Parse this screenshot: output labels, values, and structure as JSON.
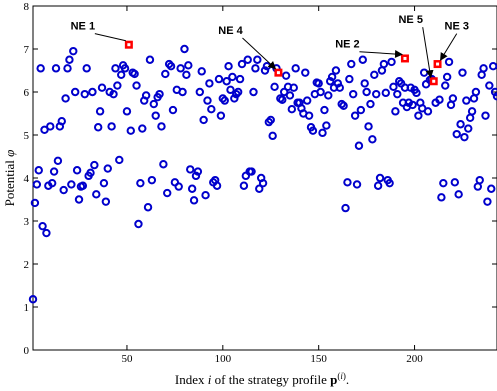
{
  "chart_data": {
    "type": "scatter",
    "xlabel": "Index i of the strategy profile p(i).",
    "ylabel": "Potential φ",
    "xlim": [
      1,
      243
    ],
    "ylim": [
      0,
      8
    ],
    "xticks": [
      50,
      100,
      150,
      200
    ],
    "yticks": [
      0,
      1,
      2,
      3,
      4,
      5,
      6,
      7,
      8
    ],
    "grid": false,
    "colors": {
      "points": "#0000cc",
      "ne": "#ff0000",
      "axes": "#000000"
    },
    "series": [
      {
        "points": [
          [
            1,
            1.18
          ],
          [
            2,
            3.42
          ],
          [
            3,
            3.85
          ],
          [
            4,
            4.18
          ],
          [
            5,
            6.55
          ],
          [
            6,
            2.88
          ],
          [
            7,
            5.12
          ],
          [
            8,
            2.72
          ],
          [
            9,
            3.82
          ],
          [
            10,
            5.2
          ],
          [
            11,
            3.88
          ],
          [
            12,
            4.15
          ],
          [
            13,
            6.55
          ],
          [
            14,
            4.4
          ],
          [
            15,
            5.2
          ],
          [
            16,
            5.32
          ],
          [
            17,
            3.72
          ],
          [
            18,
            5.85
          ],
          [
            19,
            6.55
          ],
          [
            20,
            6.75
          ],
          [
            21,
            3.85
          ],
          [
            22,
            6.95
          ],
          [
            23,
            6.0
          ],
          [
            24,
            4.18
          ],
          [
            25,
            3.5
          ],
          [
            26,
            3.8
          ],
          [
            27,
            3.82
          ],
          [
            28,
            5.95
          ],
          [
            29,
            6.55
          ],
          [
            30,
            4.05
          ],
          [
            31,
            4.12
          ],
          [
            32,
            6.0
          ],
          [
            33,
            4.3
          ],
          [
            34,
            3.62
          ],
          [
            35,
            5.18
          ],
          [
            36,
            5.55
          ],
          [
            37,
            6.1
          ],
          [
            38,
            3.88
          ],
          [
            39,
            3.45
          ],
          [
            40,
            4.22
          ],
          [
            41,
            6.0
          ],
          [
            42,
            5.2
          ],
          [
            43,
            5.95
          ],
          [
            44,
            6.55
          ],
          [
            45,
            6.15
          ],
          [
            46,
            4.42
          ],
          [
            47,
            6.4
          ],
          [
            48,
            6.62
          ],
          [
            49,
            6.55
          ],
          [
            50,
            5.55
          ],
          [
            52,
            5.1
          ],
          [
            53,
            6.45
          ],
          [
            54,
            6.42
          ],
          [
            55,
            6.15
          ],
          [
            56,
            2.93
          ],
          [
            57,
            3.88
          ],
          [
            58,
            5.15
          ],
          [
            59,
            5.8
          ],
          [
            60,
            5.92
          ],
          [
            61,
            3.32
          ],
          [
            62,
            6.75
          ],
          [
            63,
            3.95
          ],
          [
            64,
            5.72
          ],
          [
            65,
            5.45
          ],
          [
            66,
            5.88
          ],
          [
            67,
            5.95
          ],
          [
            68,
            5.2
          ],
          [
            69,
            4.32
          ],
          [
            70,
            6.42
          ],
          [
            71,
            3.65
          ],
          [
            72,
            6.65
          ],
          [
            73,
            6.6
          ],
          [
            74,
            5.58
          ],
          [
            75,
            3.9
          ],
          [
            76,
            6.05
          ],
          [
            77,
            3.8
          ],
          [
            78,
            6.55
          ],
          [
            79,
            6.0
          ],
          [
            80,
            7.0
          ],
          [
            81,
            6.4
          ],
          [
            82,
            6.62
          ],
          [
            83,
            4.2
          ],
          [
            84,
            3.75
          ],
          [
            85,
            3.48
          ],
          [
            86,
            4.05
          ],
          [
            87,
            4.15
          ],
          [
            88,
            6.0
          ],
          [
            89,
            6.48
          ],
          [
            90,
            5.35
          ],
          [
            91,
            3.6
          ],
          [
            92,
            5.8
          ],
          [
            93,
            6.2
          ],
          [
            94,
            5.6
          ],
          [
            95,
            3.9
          ],
          [
            96,
            3.95
          ],
          [
            97,
            3.82
          ],
          [
            98,
            6.3
          ],
          [
            99,
            5.45
          ],
          [
            100,
            5.85
          ],
          [
            101,
            5.8
          ],
          [
            102,
            6.25
          ],
          [
            103,
            6.6
          ],
          [
            104,
            6.05
          ],
          [
            105,
            6.35
          ],
          [
            106,
            5.85
          ],
          [
            107,
            5.95
          ],
          [
            108,
            6.0
          ],
          [
            109,
            6.3
          ],
          [
            110,
            6.65
          ],
          [
            111,
            3.82
          ],
          [
            112,
            4.05
          ],
          [
            113,
            6.75
          ],
          [
            114,
            4.15
          ],
          [
            115,
            4.15
          ],
          [
            116,
            6.0
          ],
          [
            117,
            6.55
          ],
          [
            118,
            6.75
          ],
          [
            119,
            3.75
          ],
          [
            120,
            4.0
          ],
          [
            121,
            3.88
          ],
          [
            122,
            6.5
          ],
          [
            123,
            6.6
          ],
          [
            124,
            5.3
          ],
          [
            125,
            5.35
          ],
          [
            126,
            4.98
          ],
          [
            127,
            6.12
          ],
          [
            128,
            6.55
          ],
          [
            130,
            5.85
          ],
          [
            131,
            5.82
          ],
          [
            132,
            6.0
          ],
          [
            133,
            6.38
          ],
          [
            134,
            6.12
          ],
          [
            135,
            5.92
          ],
          [
            136,
            5.6
          ],
          [
            137,
            6.1
          ],
          [
            138,
            6.55
          ],
          [
            139,
            5.75
          ],
          [
            140,
            5.75
          ],
          [
            141,
            5.62
          ],
          [
            142,
            5.5
          ],
          [
            143,
            6.45
          ],
          [
            144,
            5.8
          ],
          [
            145,
            5.45
          ],
          [
            146,
            5.18
          ],
          [
            147,
            5.1
          ],
          [
            148,
            5.95
          ],
          [
            149,
            6.22
          ],
          [
            150,
            6.2
          ],
          [
            151,
            6.0
          ],
          [
            152,
            5.05
          ],
          [
            153,
            5.58
          ],
          [
            154,
            5.22
          ],
          [
            155,
            5.92
          ],
          [
            156,
            6.25
          ],
          [
            157,
            6.35
          ],
          [
            158,
            6.1
          ],
          [
            159,
            6.5
          ],
          [
            160,
            6.2
          ],
          [
            161,
            6.1
          ],
          [
            162,
            5.72
          ],
          [
            163,
            5.68
          ],
          [
            164,
            3.3
          ],
          [
            165,
            3.9
          ],
          [
            166,
            6.3
          ],
          [
            167,
            6.65
          ],
          [
            168,
            5.95
          ],
          [
            169,
            5.45
          ],
          [
            170,
            3.85
          ],
          [
            171,
            4.75
          ],
          [
            172,
            5.58
          ],
          [
            173,
            6.75
          ],
          [
            174,
            6.2
          ],
          [
            175,
            6.0
          ],
          [
            176,
            5.2
          ],
          [
            177,
            5.72
          ],
          [
            178,
            4.9
          ],
          [
            179,
            6.4
          ],
          [
            180,
            5.95
          ],
          [
            181,
            3.82
          ],
          [
            182,
            4.0
          ],
          [
            183,
            6.5
          ],
          [
            184,
            6.65
          ],
          [
            185,
            5.98
          ],
          [
            186,
            3.95
          ],
          [
            187,
            3.88
          ],
          [
            188,
            6.7
          ],
          [
            189,
            6.12
          ],
          [
            190,
            5.55
          ],
          [
            191,
            5.95
          ],
          [
            192,
            6.25
          ],
          [
            193,
            6.2
          ],
          [
            194,
            5.75
          ],
          [
            195,
            6.1
          ],
          [
            196,
            5.65
          ],
          [
            197,
            5.75
          ],
          [
            198,
            6.1
          ],
          [
            199,
            5.7
          ],
          [
            200,
            6.05
          ],
          [
            201,
            5.98
          ],
          [
            202,
            5.45
          ],
          [
            203,
            5.75
          ],
          [
            204,
            5.62
          ],
          [
            205,
            6.45
          ],
          [
            206,
            6.18
          ],
          [
            207,
            5.55
          ],
          [
            208,
            6.28
          ],
          [
            209,
            6.3
          ],
          [
            211,
            5.75
          ],
          [
            213,
            5.82
          ],
          [
            214,
            3.55
          ],
          [
            215,
            3.88
          ],
          [
            216,
            6.15
          ],
          [
            217,
            6.35
          ],
          [
            218,
            6.7
          ],
          [
            219,
            5.7
          ],
          [
            220,
            5.85
          ],
          [
            221,
            3.9
          ],
          [
            222,
            5.02
          ],
          [
            223,
            3.62
          ],
          [
            224,
            5.25
          ],
          [
            225,
            6.45
          ],
          [
            226,
            4.95
          ],
          [
            227,
            5.8
          ],
          [
            228,
            5.15
          ],
          [
            229,
            5.4
          ],
          [
            230,
            5.55
          ],
          [
            231,
            5.85
          ],
          [
            232,
            6.0
          ],
          [
            233,
            3.8
          ],
          [
            234,
            3.95
          ],
          [
            235,
            6.4
          ],
          [
            236,
            6.55
          ],
          [
            237,
            5.45
          ],
          [
            238,
            3.45
          ],
          [
            239,
            6.15
          ],
          [
            240,
            3.75
          ],
          [
            241,
            6.6
          ],
          [
            242,
            6.0
          ],
          [
            243,
            5.9
          ]
        ]
      },
      {
        "points": [
          [
            51,
            7.1
          ],
          [
            129,
            6.45
          ],
          [
            195,
            6.78
          ],
          [
            210,
            6.25
          ],
          [
            212,
            6.65
          ]
        ]
      }
    ],
    "annotations": [
      {
        "text": "NE 1",
        "x": 51,
        "y": 7.1,
        "anchor_x": 27,
        "anchor_y": 7.45,
        "arrow": false
      },
      {
        "text": "NE 4",
        "x": 129,
        "y": 6.45,
        "anchor_x": 104,
        "anchor_y": 7.35,
        "arrow": true
      },
      {
        "text": "NE 2",
        "x": 195,
        "y": 6.78,
        "anchor_x": 165,
        "anchor_y": 7.03,
        "arrow": true
      },
      {
        "text": "NE 5",
        "x": 210,
        "y": 6.25,
        "anchor_x": 198,
        "anchor_y": 7.6,
        "arrow": true
      },
      {
        "text": "NE 3",
        "x": 212,
        "y": 6.65,
        "anchor_x": 222,
        "anchor_y": 7.45,
        "arrow": true
      }
    ]
  }
}
